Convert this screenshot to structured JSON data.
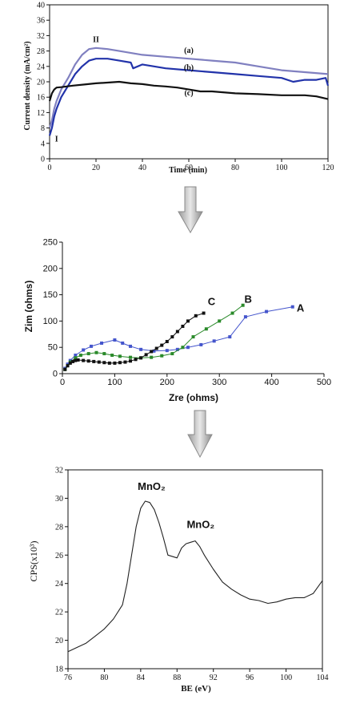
{
  "chart_data": [
    {
      "type": "line",
      "xlabel": "Time (min)",
      "ylabel": "Current density (mA/cm²)",
      "xlim": [
        0,
        120
      ],
      "ylim": [
        0,
        40
      ],
      "xticks": [
        "0",
        "20",
        "40",
        "60",
        "80",
        "100",
        "120"
      ],
      "yticks": [
        "0",
        "4",
        "8",
        "12",
        "16",
        "20",
        "24",
        "28",
        "32",
        "36",
        "40"
      ],
      "series": [
        {
          "name": "(a)",
          "color": "#8080c0",
          "x": [
            0,
            1,
            2,
            3,
            5,
            8,
            11,
            14,
            17,
            20,
            25,
            30,
            40,
            50,
            60,
            70,
            80,
            90,
            100,
            110,
            120
          ],
          "y": [
            8,
            10,
            13,
            15,
            18,
            21,
            24.5,
            27,
            28.5,
            28.8,
            28.5,
            28,
            27,
            26.5,
            26,
            25.5,
            25,
            24,
            23,
            22.5,
            22
          ]
        },
        {
          "name": "(b)",
          "color": "#2233aa",
          "x": [
            0,
            1,
            2,
            3,
            5,
            8,
            11,
            14,
            17,
            20,
            25,
            30,
            35,
            36,
            40,
            50,
            60,
            70,
            80,
            90,
            100,
            105,
            110,
            115,
            119,
            120
          ],
          "y": [
            6,
            8,
            11,
            13,
            16,
            19,
            22,
            24,
            25.5,
            26,
            26,
            25.5,
            25,
            23.5,
            24.5,
            23.5,
            23,
            22.5,
            22,
            21.5,
            21,
            20,
            20.5,
            20.5,
            21,
            19
          ]
        },
        {
          "name": "(c)",
          "color": "#111111",
          "x": [
            0,
            1,
            2,
            3,
            5,
            10,
            15,
            20,
            25,
            30,
            35,
            40,
            45,
            50,
            55,
            60,
            65,
            70,
            80,
            90,
            100,
            110,
            115,
            120
          ],
          "y": [
            15,
            17,
            18,
            18.5,
            18.6,
            19,
            19.3,
            19.6,
            19.8,
            20,
            19.6,
            19.4,
            19,
            18.8,
            18.5,
            18,
            17.5,
            17.5,
            17,
            16.8,
            16.5,
            16.5,
            16.2,
            15.5
          ]
        }
      ],
      "annotations": [
        {
          "text": "II",
          "x": 20,
          "y": 30.3
        },
        {
          "text": "I",
          "x": 3,
          "y": 4.5
        },
        {
          "text": "(a)",
          "x": 60,
          "y": 27.5
        },
        {
          "text": "(b)",
          "x": 60,
          "y": 23
        },
        {
          "text": "(c)",
          "x": 60,
          "y": 16.5
        }
      ]
    },
    {
      "type": "scatter",
      "xlabel": "Zre (ohms)",
      "ylabel": "Zim (ohms)",
      "xlim": [
        0,
        500
      ],
      "ylim": [
        0,
        250
      ],
      "xticks": [
        "0",
        "100",
        "200",
        "300",
        "400",
        "500"
      ],
      "yticks": [
        "0",
        "50",
        "100",
        "150",
        "200",
        "250"
      ],
      "series": [
        {
          "name": "A",
          "color": "#4455cc",
          "x": [
            5,
            10,
            15,
            25,
            40,
            55,
            75,
            100,
            115,
            130,
            150,
            175,
            200,
            220,
            240,
            265,
            290,
            320,
            350,
            390,
            440
          ],
          "y": [
            10,
            18,
            25,
            35,
            45,
            52,
            58,
            64,
            58,
            52,
            46,
            43,
            44,
            46,
            50,
            55,
            62,
            70,
            108,
            118,
            127
          ]
        },
        {
          "name": "B",
          "color": "#2a8a2a",
          "x": [
            5,
            10,
            15,
            25,
            35,
            50,
            65,
            80,
            95,
            110,
            130,
            150,
            170,
            190,
            210,
            230,
            250,
            275,
            300,
            325,
            345
          ],
          "y": [
            8,
            15,
            22,
            30,
            35,
            38,
            40,
            38,
            35,
            33,
            31,
            30,
            31,
            34,
            38,
            50,
            70,
            85,
            100,
            115,
            130
          ]
        },
        {
          "name": "C",
          "color": "#111111",
          "x": [
            5,
            10,
            15,
            20,
            25,
            30,
            40,
            50,
            60,
            70,
            80,
            90,
            100,
            110,
            120,
            130,
            140,
            150,
            160,
            170,
            180,
            190,
            200,
            210,
            220,
            230,
            240,
            255,
            270
          ],
          "y": [
            8,
            15,
            20,
            23,
            25,
            26,
            25,
            24,
            23,
            22,
            21,
            20,
            20,
            21,
            22,
            24,
            27,
            30,
            36,
            42,
            48,
            54,
            61,
            70,
            80,
            90,
            100,
            110,
            115
          ]
        }
      ],
      "annotations": [
        {
          "text": "C",
          "x": 285,
          "y": 130
        },
        {
          "text": "B",
          "x": 355,
          "y": 135
        },
        {
          "text": "A",
          "x": 455,
          "y": 118
        }
      ]
    },
    {
      "type": "line",
      "xlabel": "BE (eV)",
      "ylabel": "CPS(x10³)",
      "xlim": [
        76,
        104
      ],
      "ylim": [
        18,
        32
      ],
      "xticks": [
        "76",
        "80",
        "84",
        "88",
        "92",
        "96",
        "100",
        "104"
      ],
      "yticks": [
        "18",
        "20",
        "22",
        "24",
        "26",
        "28",
        "30",
        "32"
      ],
      "series": [
        {
          "name": "",
          "color": "#222222",
          "x": [
            76,
            77,
            78,
            79,
            80,
            81,
            82,
            82.5,
            83,
            83.5,
            84,
            84.5,
            85,
            85.5,
            86,
            86.5,
            87,
            88,
            88.5,
            89,
            89.5,
            90,
            90.5,
            91,
            92,
            93,
            94,
            95,
            96,
            97,
            98,
            99,
            100,
            101,
            102,
            103,
            104
          ],
          "y": [
            19.2,
            19.5,
            19.8,
            20.3,
            20.8,
            21.5,
            22.5,
            24,
            26,
            28,
            29.3,
            29.8,
            29.7,
            29.2,
            28.3,
            27.2,
            26,
            25.8,
            26.5,
            26.8,
            26.9,
            27,
            26.6,
            26,
            25,
            24.1,
            23.6,
            23.2,
            22.9,
            22.8,
            22.6,
            22.7,
            22.9,
            23,
            23,
            23.3,
            24.2
          ]
        }
      ],
      "annotations": [
        {
          "text": "MnO₂",
          "x": 85.2,
          "y": 30.6
        },
        {
          "text": "MnO₂",
          "x": 90.6,
          "y": 27.9
        }
      ]
    }
  ]
}
